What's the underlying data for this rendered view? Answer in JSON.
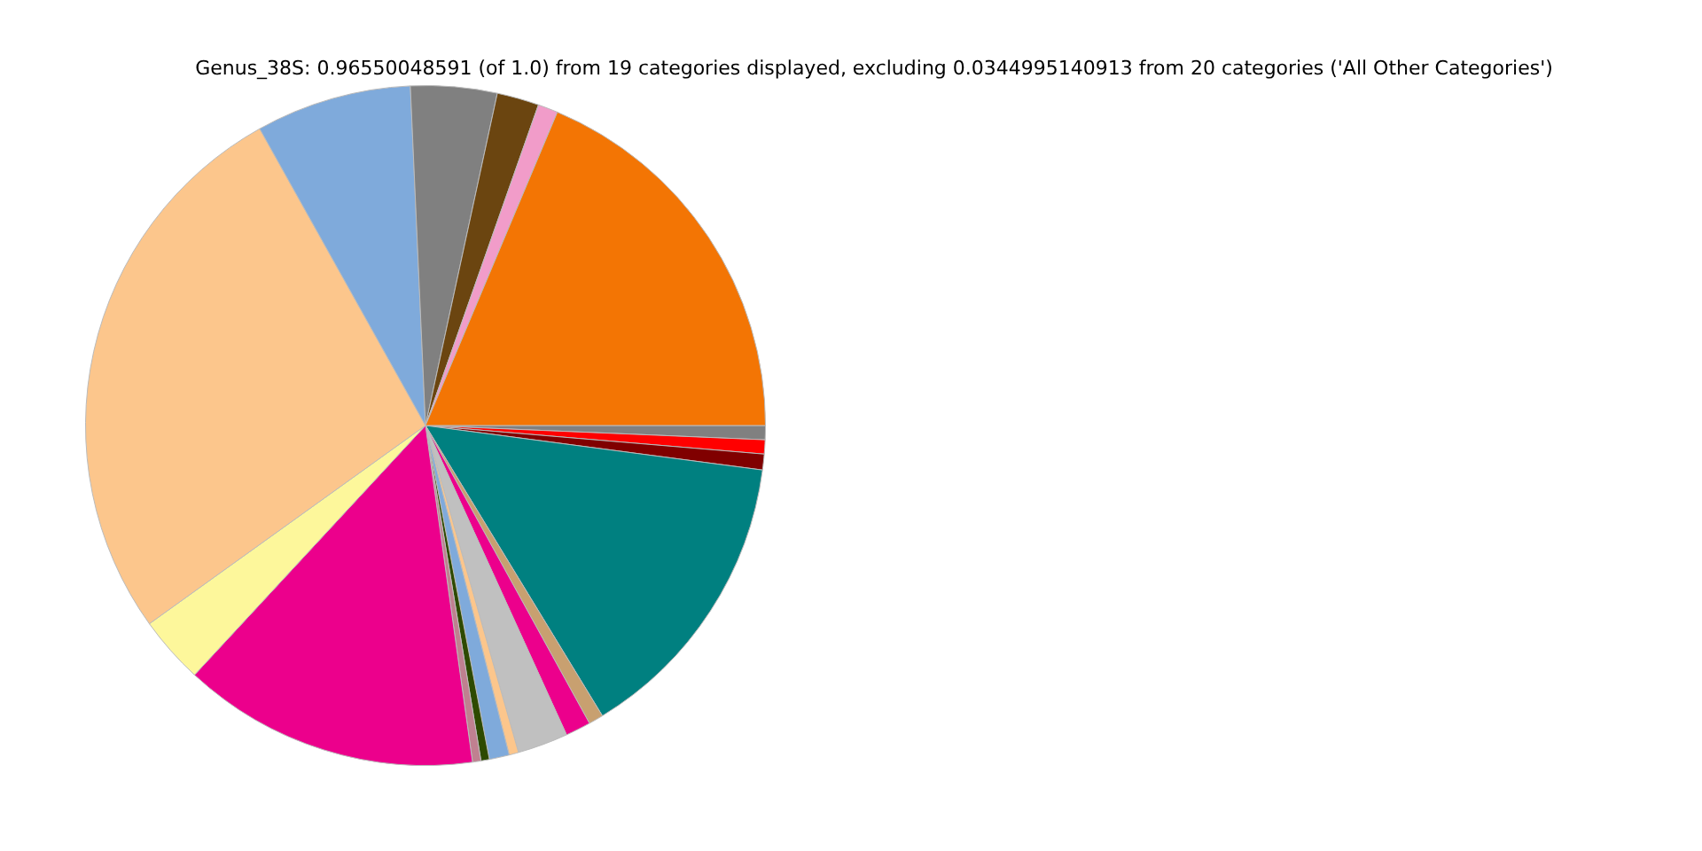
{
  "chart_data": {
    "type": "pie",
    "title": "Genus_38S: 0.96550048591 (of 1.0) from 19 categories displayed, excluding 0.0344995140913 from 20 categories ('All Other Categories')",
    "categories": [
      null,
      null,
      null,
      null,
      null,
      null,
      null,
      null,
      null,
      null,
      null,
      null,
      null,
      null,
      null,
      null,
      null,
      null,
      null
    ],
    "values": [
      0.67,
      0.67,
      0.75,
      14.2,
      0.7,
      1.2,
      2.4,
      0.45,
      0.95,
      0.4,
      0.4,
      14.1,
      3.2,
      26.8,
      7.4,
      4.1,
      2.0,
      0.95,
      18.66
    ],
    "colors": [
      "#808080",
      "#ff0000",
      "#800000",
      "#008080",
      "#c8a070",
      "#ec008c",
      "#c0c0c0",
      "#fcc68c",
      "#7faadb",
      "#2e4a00",
      "#c08090",
      "#ec008c",
      "#fdf79b",
      "#fcc68c",
      "#7faadb",
      "#808080",
      "#6b4510",
      "#f19cc9",
      "#f37504"
    ],
    "legend": false
  }
}
